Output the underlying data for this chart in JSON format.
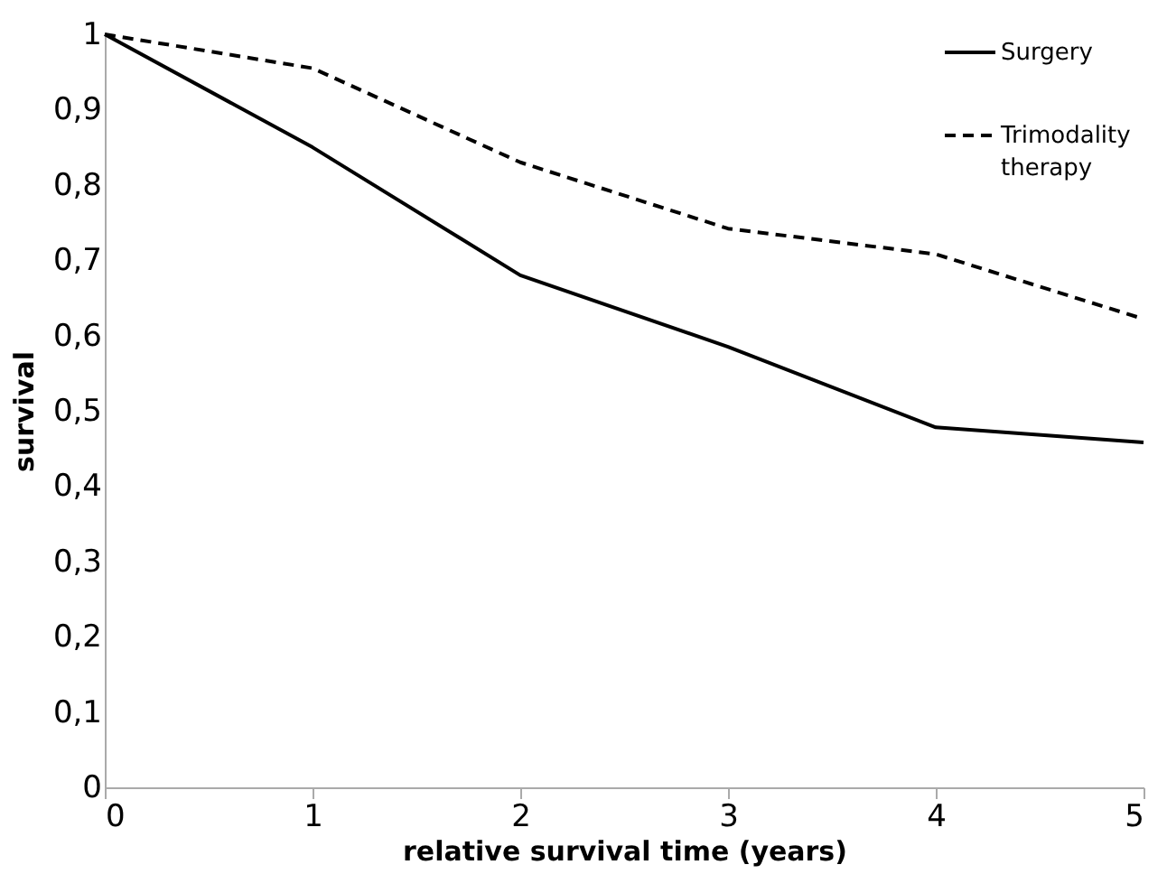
{
  "chart_data": {
    "type": "line",
    "xlabel": "relative survival time (years)",
    "ylabel": "survival",
    "x": [
      0,
      1,
      2,
      3,
      4,
      5
    ],
    "series": [
      {
        "name": "Surgery",
        "color": "#000000",
        "line_style": "solid",
        "values": [
          1,
          0.85,
          0.68,
          0.585,
          0.478,
          0.458
        ]
      },
      {
        "name": "Trimodality therapy",
        "color": "#000000",
        "line_style": "dashed",
        "values": [
          1,
          0.955,
          0.83,
          0.742,
          0.708,
          0.622
        ]
      }
    ],
    "xlim": [
      0,
      5
    ],
    "xticks": [
      0,
      1,
      2,
      3,
      4,
      5
    ],
    "ylim": [
      0,
      1
    ],
    "yticks": [
      0,
      {
        "value": 0.1,
        "label": "0,1"
      },
      {
        "value": 0.2,
        "label": "0,2"
      },
      {
        "value": 0.3,
        "label": "0,3"
      },
      {
        "value": 0.4,
        "label": "0,4"
      },
      {
        "value": 0.5,
        "label": "0,5"
      },
      {
        "value": 0.6,
        "label": "0,6"
      },
      {
        "value": 0.7,
        "label": "0,7"
      },
      {
        "value": 0.8,
        "label": "0,8"
      },
      {
        "value": 0.9,
        "label": "0,9"
      },
      1
    ],
    "grid": false,
    "legend": "top right",
    "marker": "none"
  }
}
